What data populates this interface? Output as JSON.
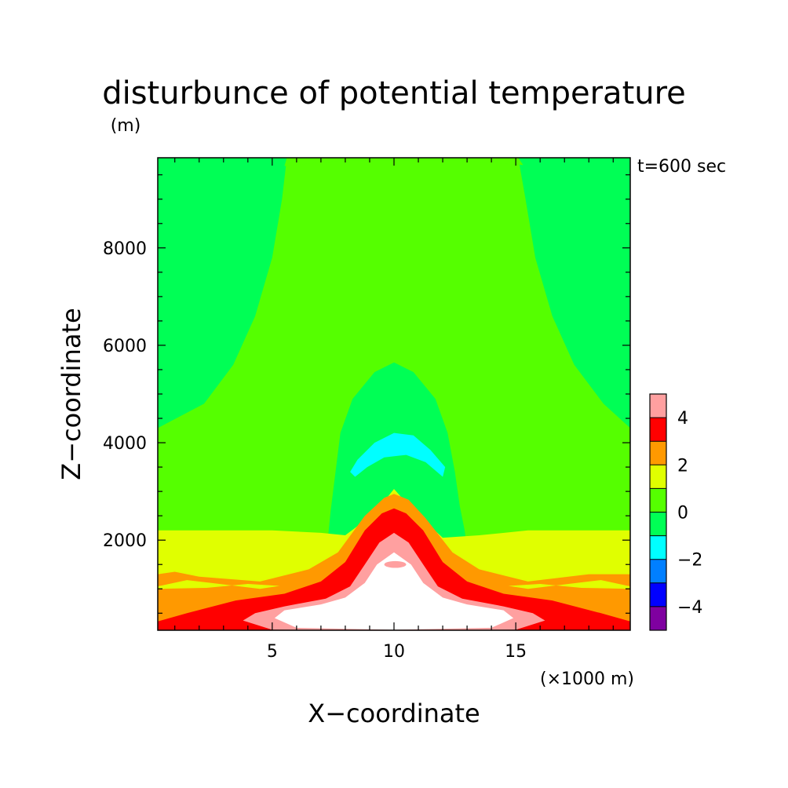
{
  "chart_data": {
    "type": "heatmap",
    "title": "disturbunce of potential temperature",
    "yunit": "(m)",
    "annotation": "t=600 sec",
    "xlabel": "X−coordinate",
    "ylabel": "Z−coordinate",
    "xunit": "(×1000 m)",
    "xlim": [
      0.3,
      19.7
    ],
    "ylim": [
      150,
      9850
    ],
    "xticks": [
      5,
      10,
      15
    ],
    "xtick_labels": [
      "5",
      "10",
      "15"
    ],
    "yticks": [
      2000,
      4000,
      6000,
      8000
    ],
    "ytick_labels": [
      "2000",
      "4000",
      "6000",
      "8000"
    ],
    "colorbar": {
      "levels": [
        -5,
        -4,
        -3,
        -2,
        -1,
        0,
        1,
        2,
        3,
        4,
        5
      ],
      "tick_values": [
        4,
        2,
        0,
        -2,
        -4
      ],
      "tick_labels": [
        "4",
        "2",
        "0",
        "−2",
        "−4"
      ],
      "colors": [
        "#7f00a0",
        "#0000ff",
        "#007fff",
        "#00ffff",
        "#00ff55",
        "#55ff00",
        "#e0ff00",
        "#ff9900",
        "#ff0000",
        "#ffa0a0"
      ],
      "over_color": "#ffffff"
    },
    "field_description": "background ~0 (green); central warm plume centered x=10 with values >5 near surface, cool anomaly (-1) aloft near z=3800 m"
  }
}
